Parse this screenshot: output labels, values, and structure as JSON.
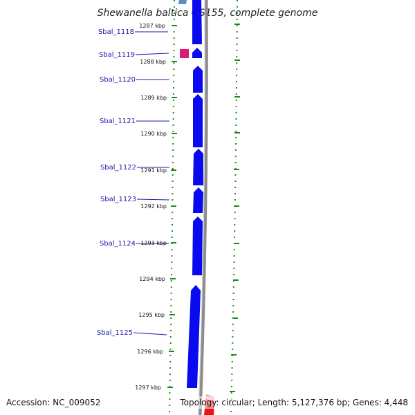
{
  "title": "Shewanella baltica OS155, complete genome",
  "accession": "Accession: NC_009052",
  "summary": "Topology: circular; Length: 5,127,376 bp; Genes: 4,448",
  "colors": {
    "gene_blue": "#0a0aee",
    "gene_pink": "#e0187a",
    "gene_red": "#ee1111",
    "ruler_green": "#1e8a1e",
    "backbone_gray": "#8c8c8c",
    "label_blue": "#1a1aa8",
    "leader_line": "#1a1aa8"
  },
  "ruler": {
    "unit": "kbp",
    "ticks": [
      {
        "kbp": 1287,
        "label": "1287 kbp"
      },
      {
        "kbp": 1288,
        "label": "1288 kbp"
      },
      {
        "kbp": 1289,
        "label": "1289 kbp"
      },
      {
        "kbp": 1290,
        "label": "1290 kbp"
      },
      {
        "kbp": 1291,
        "label": "1291 kbp"
      },
      {
        "kbp": 1292,
        "label": "1292 kbp"
      },
      {
        "kbp": 1293,
        "label": "1293 kbp"
      },
      {
        "kbp": 1294,
        "label": "1294 kbp"
      },
      {
        "kbp": 1295,
        "label": "1295 kbp"
      },
      {
        "kbp": 1296,
        "label": "1296 kbp"
      },
      {
        "kbp": 1297,
        "label": "1297 kbp"
      }
    ]
  },
  "genes": [
    {
      "label": "Sbal_1118",
      "strand": "+",
      "color": "blue"
    },
    {
      "label": "Sbal_1119",
      "strand": "+",
      "color": "blue"
    },
    {
      "label": "",
      "strand": "+",
      "color": "pink"
    },
    {
      "label": "Sbal_1120",
      "strand": "+",
      "color": "blue"
    },
    {
      "label": "Sbal_1121",
      "strand": "+",
      "color": "blue"
    },
    {
      "label": "Sbal_1122",
      "strand": "+",
      "color": "blue"
    },
    {
      "label": "Sbal_1123",
      "strand": "+",
      "color": "blue"
    },
    {
      "label": "Sbal_1124",
      "strand": "+",
      "color": "blue"
    },
    {
      "label": "Sbal_1125",
      "strand": "+",
      "color": "blue"
    },
    {
      "label": "",
      "strand": "-",
      "color": "red"
    }
  ]
}
